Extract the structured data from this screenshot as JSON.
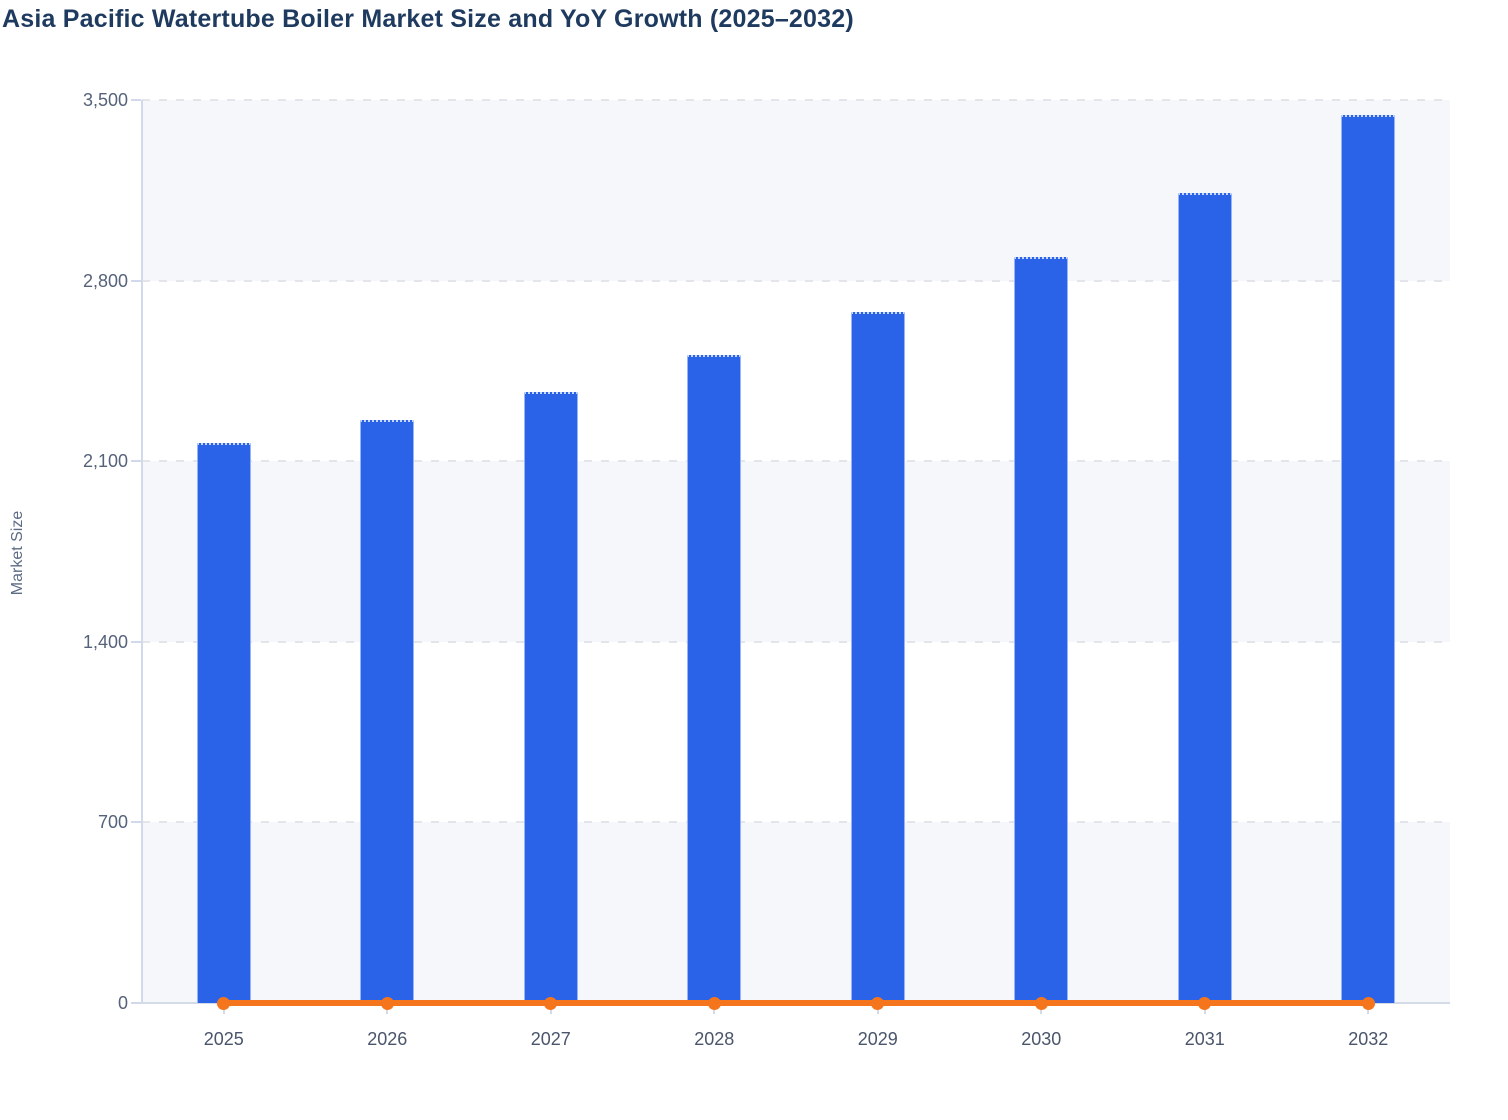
{
  "page": {
    "title": "Asia Pacific Watertube Boiler Market Size and YoY Growth (2025–2032)"
  },
  "chart_data": {
    "type": "bar",
    "title": "Asia Pacific Watertube Boiler Market Size and YoY Growth (2025–2032)",
    "categories": [
      "2025",
      "2026",
      "2027",
      "2028",
      "2029",
      "2030",
      "2031",
      "2032"
    ],
    "series": [
      {
        "name": "Market Size",
        "type": "bar",
        "color": "#2A63E8",
        "values": [
          2170,
          2260,
          2370,
          2510,
          2680,
          2890,
          3140,
          3440
        ]
      },
      {
        "name": "YoY Growth",
        "type": "line",
        "color": "#F5751C",
        "values": [
          0,
          0,
          0,
          0,
          0,
          0,
          0,
          0
        ],
        "rendered_at_zero": true
      }
    ],
    "xlabel": "",
    "ylabel": "Market Size",
    "ylim": [
      0,
      3500
    ],
    "yticks": [
      0,
      700,
      1400,
      2100,
      2800,
      3500
    ],
    "grid": "horizontal-dashed",
    "legend_position": "none",
    "band_colors": [
      "#F5F7FA",
      "#FFFFFF"
    ],
    "gridline_color": "#E3E5EA",
    "axis_line_color": "#D2D9EA",
    "tick_label_color": "#55627A",
    "title_color": "#1E3A5F"
  }
}
